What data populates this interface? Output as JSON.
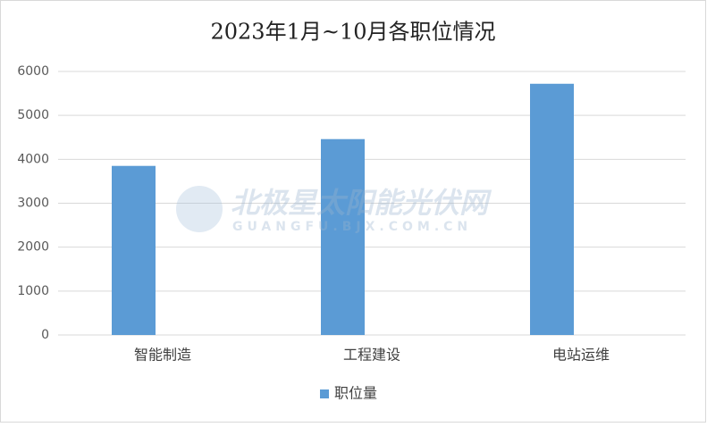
{
  "chart_data": {
    "type": "bar",
    "title": "2023年1月~10月各职位情况",
    "categories": [
      "智能制造",
      "工程建设",
      "电站运维"
    ],
    "series": [
      {
        "name": "职位量",
        "color": "#5b9bd5",
        "values": [
          3850,
          4460,
          5720
        ]
      }
    ],
    "ylim": [
      0,
      6000
    ],
    "yticks": [
      0,
      1000,
      2000,
      3000,
      4000,
      5000,
      6000
    ],
    "grid": true,
    "legend": "bottom",
    "watermark": {
      "title": "北极星太阳能光伏网",
      "url": "GUANGFU.BJX.COM.CN"
    }
  }
}
